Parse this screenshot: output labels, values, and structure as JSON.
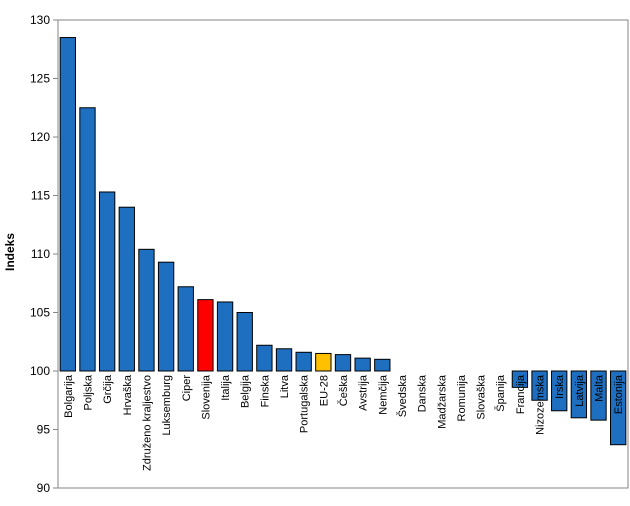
{
  "chart_data": {
    "type": "bar",
    "title": "",
    "xlabel": "",
    "ylabel": "Indeks",
    "ylim": [
      90,
      130
    ],
    "yticks": [
      90,
      95,
      100,
      105,
      110,
      115,
      120,
      125,
      130
    ],
    "baseline": 100,
    "grid": false,
    "legend": "none",
    "categories": [
      "Bolgarija",
      "Poljska",
      "Grčija",
      "Hrvaška",
      "Združeno kraljestvo",
      "Luksemburg",
      "Ciper",
      "Slovenija",
      "Italija",
      "Belgija",
      "Finska",
      "Litva",
      "Portugalska",
      "EU-28",
      "Češka",
      "Avstrija",
      "Nemčija",
      "Švedska",
      "Danska",
      "Madžarska",
      "Romunija",
      "Slovaška",
      "Španija",
      "Francija",
      "Nizozemska",
      "Irska",
      "Latvija",
      "Malta",
      "Estonija"
    ],
    "values": [
      128.5,
      122.5,
      115.3,
      114.0,
      110.4,
      109.3,
      107.2,
      106.1,
      105.9,
      105.0,
      102.2,
      101.9,
      101.6,
      101.5,
      101.4,
      101.1,
      101.0,
      100.0,
      100.0,
      100.0,
      100.0,
      100.0,
      100.0,
      98.6,
      97.5,
      96.6,
      96.0,
      95.8,
      93.7
    ],
    "colors": {
      "default": "#1f6fc0",
      "highlight_slovenija": "#ff0000",
      "highlight_eu": "#ffc000",
      "outline": "#000000"
    },
    "highlights": {
      "Slovenija": "#ff0000",
      "EU-28": "#ffc000"
    }
  }
}
